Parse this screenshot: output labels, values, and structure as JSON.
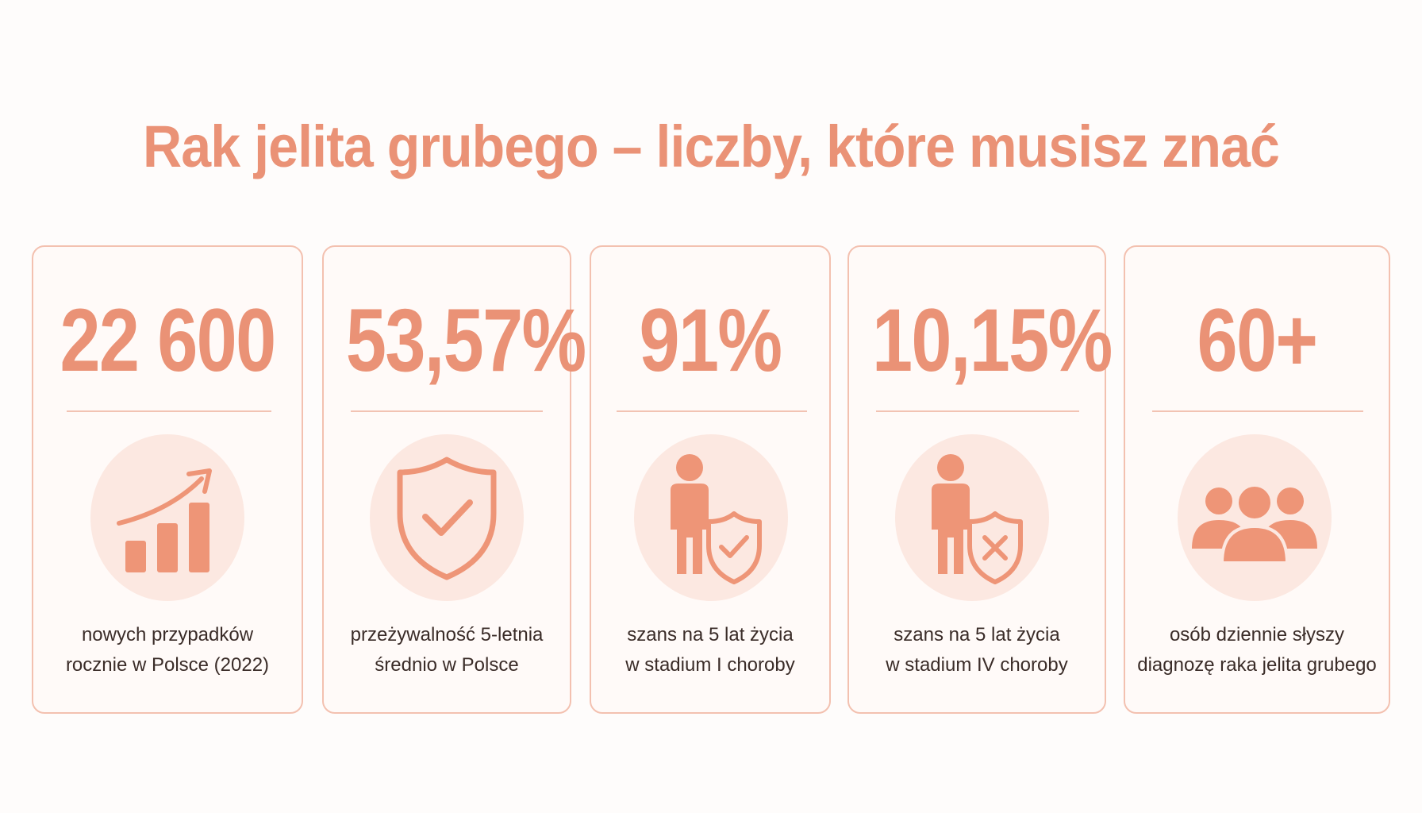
{
  "title": "Rak jelita grubego – liczby, które musisz znać",
  "colors": {
    "accent": "#ea9276",
    "icon": "#ee9577",
    "border": "#f3c1b0",
    "circle": "#fce8e1",
    "text": "#3a2c28"
  },
  "cards": [
    {
      "stat": "22 600",
      "icon": "growth-chart-icon",
      "line1": "nowych przypadków",
      "line2": "rocznie w Polsce (2022)"
    },
    {
      "stat": "53,57%",
      "icon": "shield-check-icon",
      "line1": "przeżywalność 5-letnia",
      "line2": "średnio w Polsce"
    },
    {
      "stat": "91%",
      "icon": "person-shield-check-icon",
      "line1": "szans na 5 lat życia",
      "line2": "w stadium I choroby"
    },
    {
      "stat": "10,15%",
      "icon": "person-shield-x-icon",
      "line1": "szans na 5 lat życia",
      "line2": "w stadium IV choroby"
    },
    {
      "stat": "60+",
      "icon": "group-people-icon",
      "line1": "osób dziennie słyszy",
      "line2": "diagnozę raka jelita grubego"
    }
  ]
}
